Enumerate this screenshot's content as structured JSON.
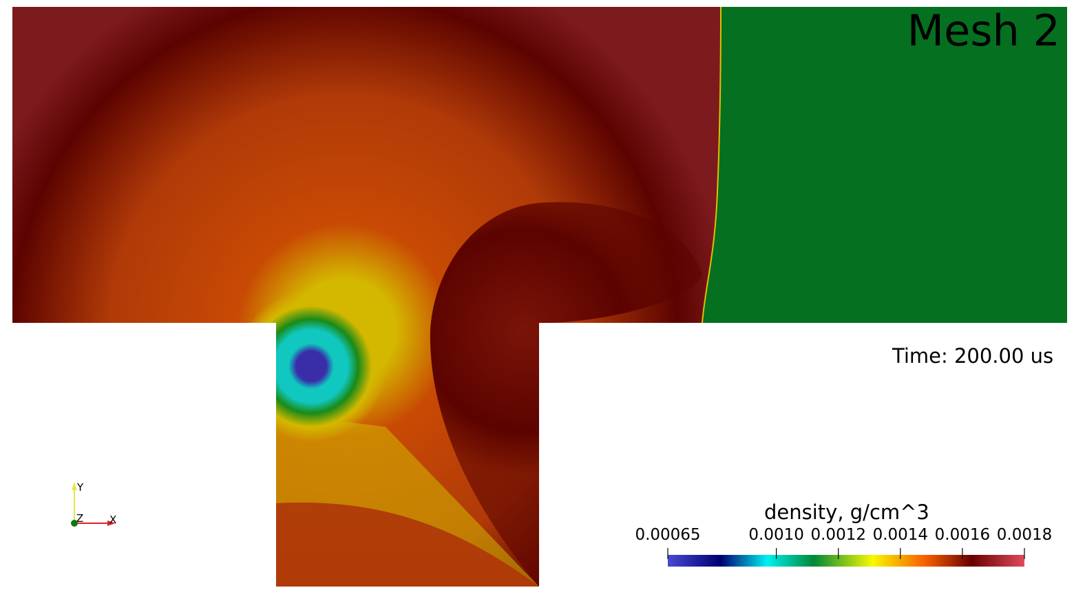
{
  "view": {
    "title": "Mesh 2",
    "time_label": "Time: 200.00 us"
  },
  "axes_triad": {
    "x_label": "X",
    "y_label": "Y",
    "z_label": "Z",
    "colors": {
      "x": "#e02020",
      "y": "#e6e64a",
      "z": "#0a7a0a"
    }
  },
  "colorbar": {
    "title": "density, g/cm^3",
    "min": 0.00065,
    "max": 0.0018,
    "ticks": [
      {
        "value": 0.00065,
        "label": "0.00065"
      },
      {
        "value": 0.001,
        "label": "0.0010"
      },
      {
        "value": 0.0012,
        "label": "0.0012"
      },
      {
        "value": 0.0014,
        "label": "0.0014"
      },
      {
        "value": 0.0016,
        "label": "0.0016"
      },
      {
        "value": 0.0018,
        "label": "0.0018"
      }
    ],
    "colormap": [
      {
        "value": 0.00065,
        "color": "#4848d6"
      },
      {
        "value": 0.00082,
        "color": "#000070"
      },
      {
        "value": 0.00097,
        "color": "#00f0f0"
      },
      {
        "value": 0.00112,
        "color": "#008838"
      },
      {
        "value": 0.00131,
        "color": "#f8f800"
      },
      {
        "value": 0.00148,
        "color": "#f86000"
      },
      {
        "value": 0.00163,
        "color": "#680000"
      },
      {
        "value": 0.0018,
        "color": "#e04a5a"
      }
    ]
  },
  "field_colors": {
    "unshocked": "#057020",
    "outer_dark": "#7c1a1e",
    "band_dark": "#5c0300",
    "mid_orange": "#b03a08",
    "orange_core": "#c84a04",
    "yellow": "#d4b800",
    "vortex_green": "#1a8a18",
    "vortex_cyan": "#10c8c0",
    "vortex_core": "#3a2ea8",
    "secondary_wave": "#7a1408",
    "bottom_orange": "#b03e08"
  }
}
